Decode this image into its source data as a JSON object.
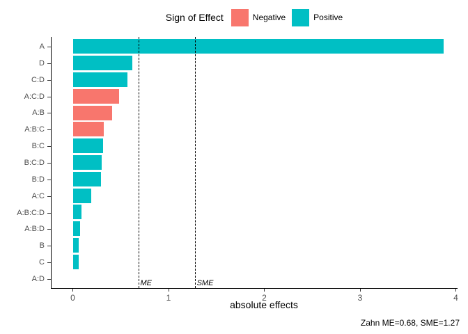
{
  "colors": {
    "negative": "#F8766D",
    "positive": "#00BFC4",
    "axis_text": "#4d4d4d",
    "axis_line": "#000000"
  },
  "legend": {
    "title": "Sign of Effect",
    "items": [
      {
        "label": "Negative",
        "color": "#F8766D"
      },
      {
        "label": "Positive",
        "color": "#00BFC4"
      }
    ]
  },
  "chart_data": {
    "type": "bar",
    "orientation": "horizontal",
    "title": "",
    "xlabel": "absolute effects",
    "ylabel": "",
    "xlim": [
      0,
      4
    ],
    "xticks": [
      0,
      1,
      2,
      3,
      4
    ],
    "grid": false,
    "legend_position": "top",
    "categories": [
      "A",
      "D",
      "C:D",
      "A:C:D",
      "A:B",
      "A:B:C",
      "B:C",
      "B:C:D",
      "B:D",
      "A:C",
      "A:B:C:D",
      "A:B:D",
      "B",
      "C",
      "A:D"
    ],
    "series": [
      {
        "name": "absolute effect",
        "values": [
          3.87,
          0.62,
          0.57,
          0.48,
          0.41,
          0.32,
          0.31,
          0.3,
          0.29,
          0.19,
          0.09,
          0.07,
          0.06,
          0.06,
          0.0
        ],
        "signs": [
          "Positive",
          "Positive",
          "Positive",
          "Negative",
          "Negative",
          "Negative",
          "Positive",
          "Positive",
          "Positive",
          "Positive",
          "Positive",
          "Positive",
          "Positive",
          "Positive",
          "Positive"
        ]
      }
    ],
    "reference_lines": [
      {
        "label": "ME",
        "value": 0.68
      },
      {
        "label": "SME",
        "value": 1.27
      }
    ]
  },
  "caption": "Zahn ME=0.68, SME=1.27"
}
